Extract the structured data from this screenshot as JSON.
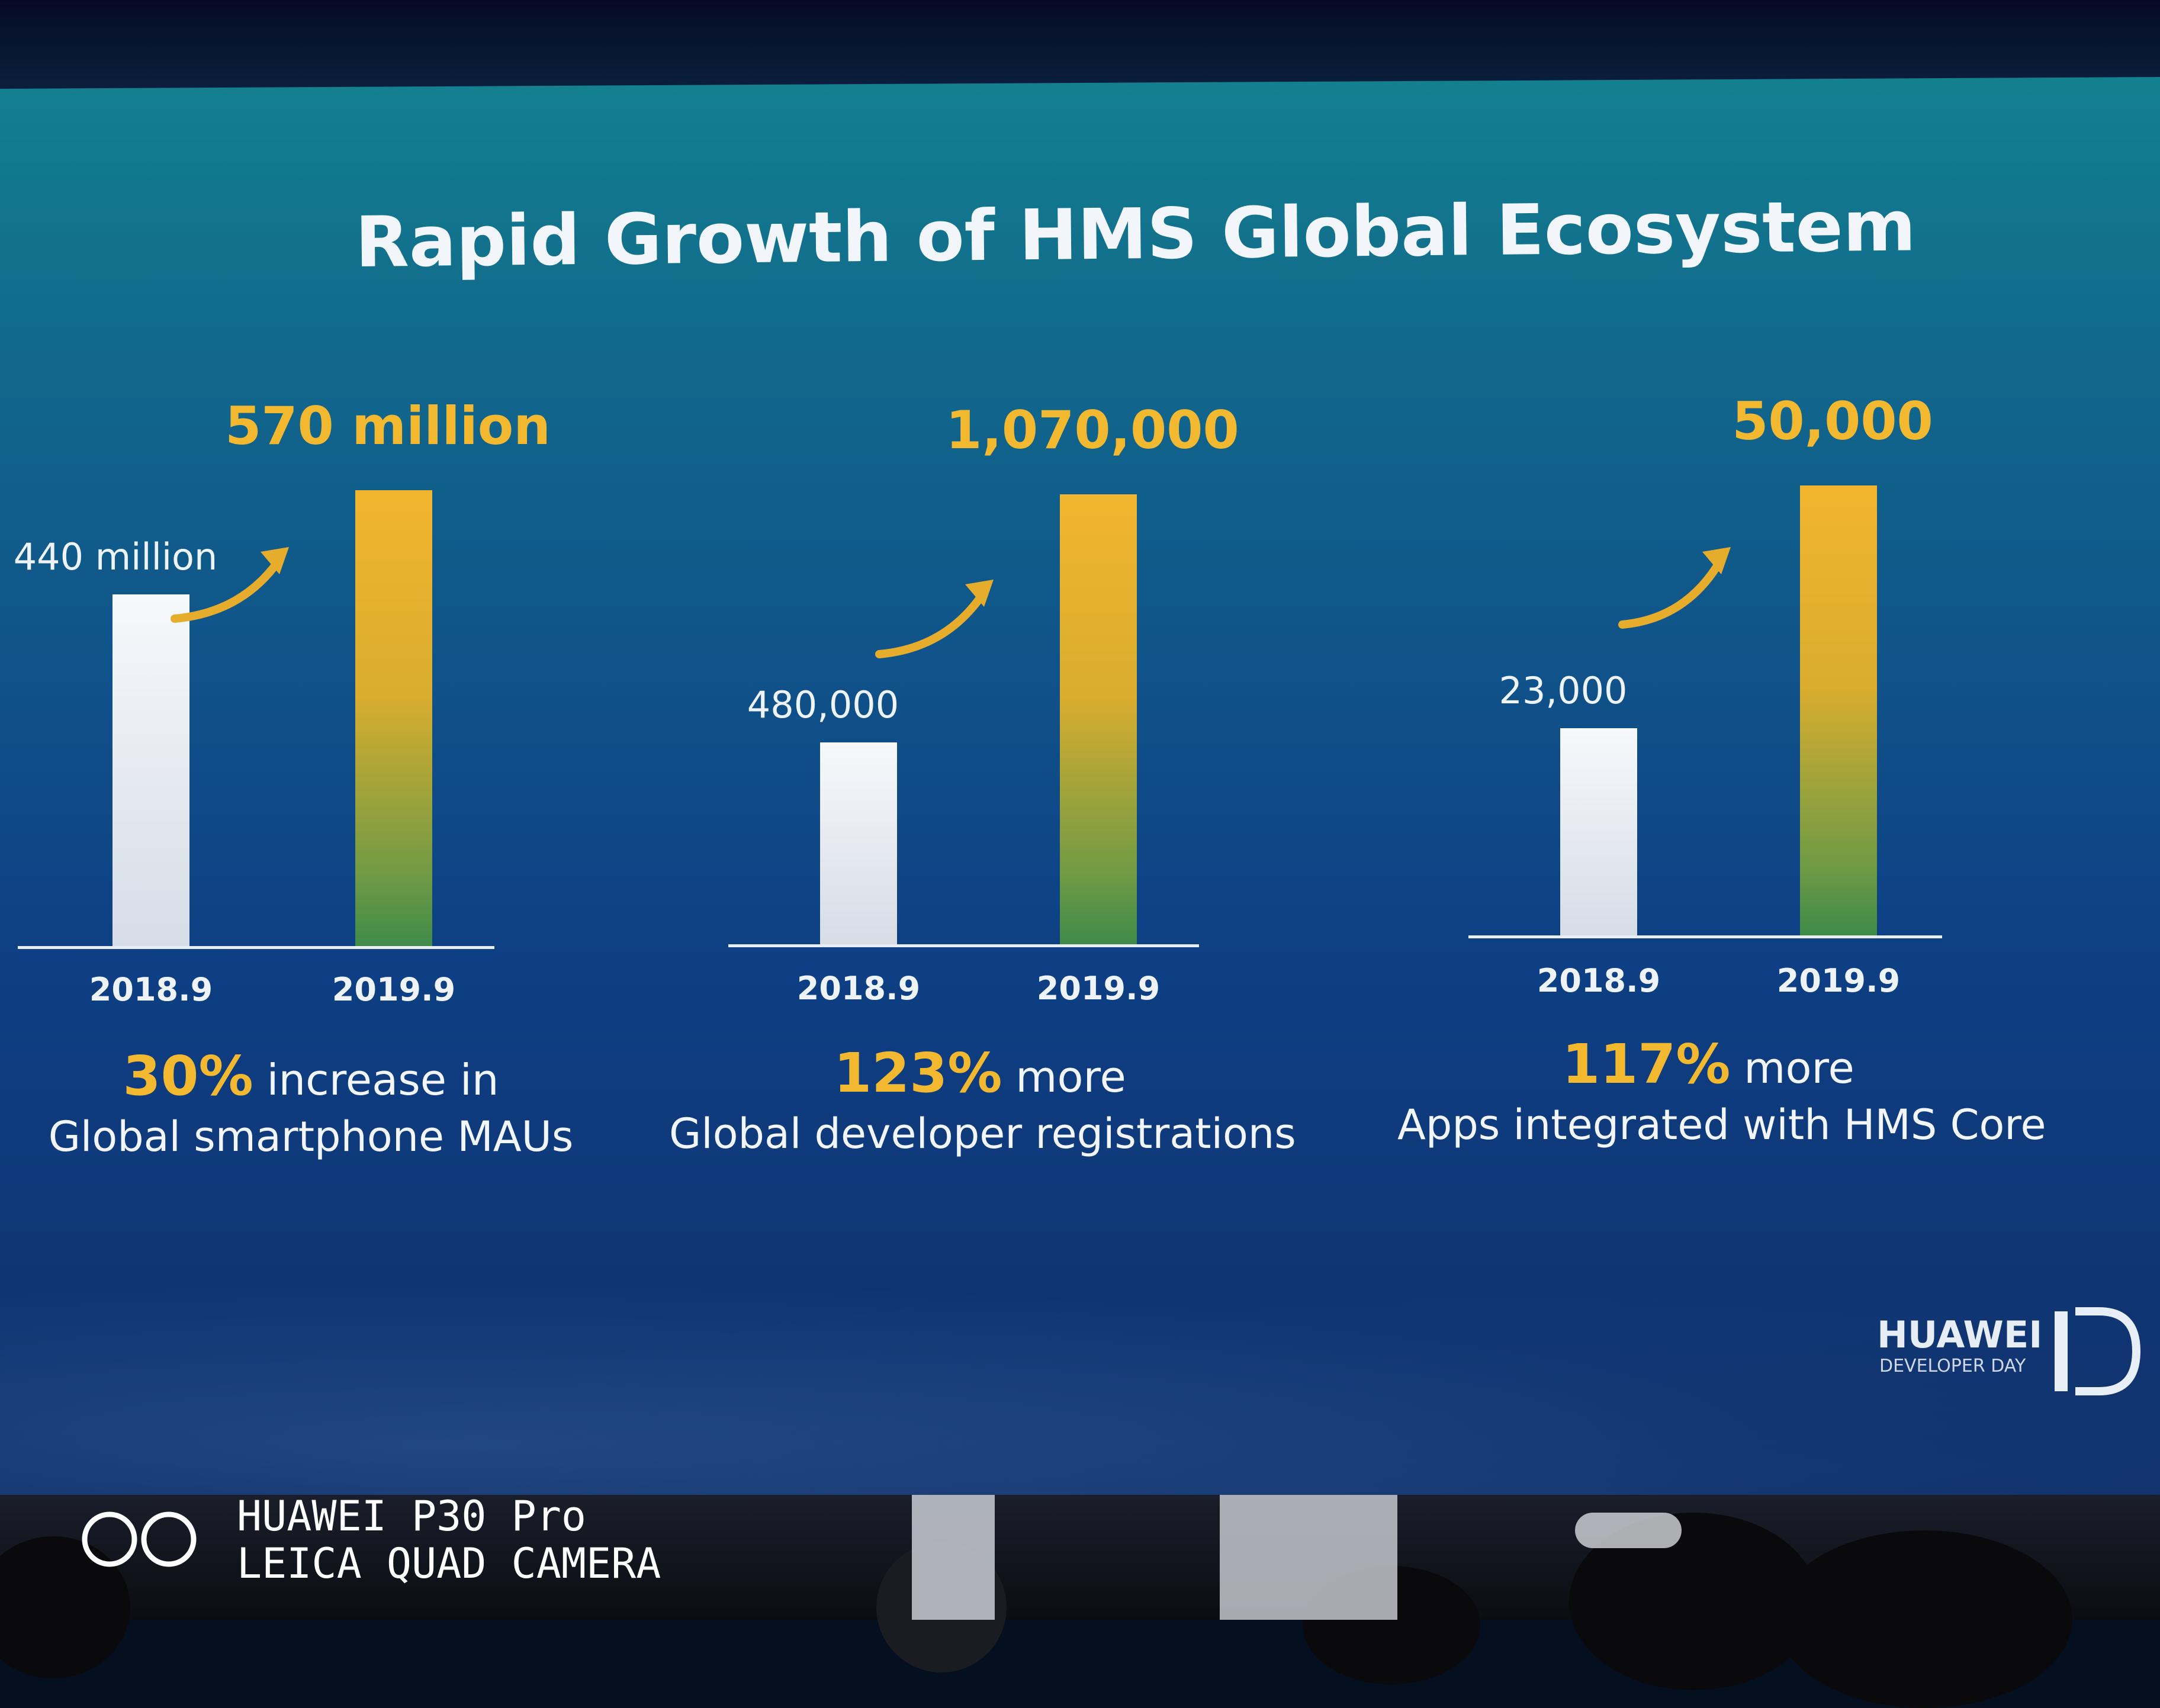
{
  "slide": {
    "title": "Rapid Growth of HMS Global Ecosystem"
  },
  "chart_data": [
    {
      "type": "bar",
      "categories": [
        "2018.9",
        "2019.9"
      ],
      "values": [
        440000000,
        570000000
      ],
      "value_labels": [
        "440 million",
        "570 million"
      ],
      "ylim": [
        0,
        640000000
      ],
      "grid": false,
      "colors": [
        "#e9eef4",
        "#f2b52e"
      ],
      "caption": {
        "percent": "30%",
        "suffix": " increase in",
        "line2": "Global smartphone MAUs"
      }
    },
    {
      "type": "bar",
      "categories": [
        "2018.9",
        "2019.9"
      ],
      "values": [
        480000,
        1070000
      ],
      "value_labels": [
        "480,000",
        "1,070,000"
      ],
      "ylim": [
        0,
        1150000
      ],
      "grid": false,
      "colors": [
        "#e9eef4",
        "#f2b52e"
      ],
      "caption": {
        "percent": "123%",
        "suffix": " more",
        "line2": "Global developer registrations"
      }
    },
    {
      "type": "bar",
      "categories": [
        "2018.9",
        "2019.9"
      ],
      "values": [
        23000,
        50000
      ],
      "value_labels": [
        "23,000",
        "50,000"
      ],
      "ylim": [
        0,
        54000
      ],
      "grid": false,
      "colors": [
        "#e9eef4",
        "#f2b52e"
      ],
      "caption": {
        "percent": "117%",
        "suffix": " more",
        "line2": "Apps integrated with HMS Core"
      }
    }
  ],
  "logo": {
    "brand": "HUAWEI",
    "event": "DEVELOPER DAY",
    "mark": "D"
  },
  "camera_watermark": {
    "model": "HUAWEI P30 Pro",
    "lens": "LEICA QUAD CAMERA"
  }
}
